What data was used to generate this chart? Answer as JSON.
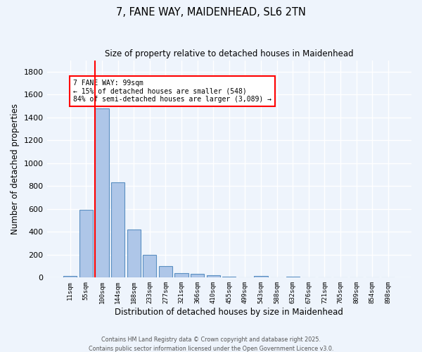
{
  "title_line1": "7, FANE WAY, MAIDENHEAD, SL6 2TN",
  "title_line2": "Size of property relative to detached houses in Maidenhead",
  "xlabel": "Distribution of detached houses by size in Maidenhead",
  "ylabel": "Number of detached properties",
  "bar_labels": [
    "11sqm",
    "55sqm",
    "100sqm",
    "144sqm",
    "188sqm",
    "233sqm",
    "277sqm",
    "321sqm",
    "366sqm",
    "410sqm",
    "455sqm",
    "499sqm",
    "543sqm",
    "588sqm",
    "632sqm",
    "676sqm",
    "721sqm",
    "765sqm",
    "809sqm",
    "854sqm",
    "898sqm"
  ],
  "bar_values": [
    15,
    590,
    1480,
    830,
    420,
    200,
    100,
    38,
    30,
    20,
    10,
    0,
    15,
    0,
    10,
    0,
    0,
    0,
    0,
    0,
    0
  ],
  "bar_color": "#aec6e8",
  "bar_edge_color": "#5a8fc2",
  "red_line_index": 2,
  "annotation_text": "7 FANE WAY: 99sqm\n← 15% of detached houses are smaller (548)\n84% of semi-detached houses are larger (3,089) →",
  "annotation_box_color": "white",
  "annotation_border_color": "red",
  "ylim": [
    0,
    1900
  ],
  "yticks": [
    0,
    200,
    400,
    600,
    800,
    1000,
    1200,
    1400,
    1600,
    1800
  ],
  "background_color": "#eef4fc",
  "grid_color": "white",
  "footer_line1": "Contains HM Land Registry data © Crown copyright and database right 2025.",
  "footer_line2": "Contains public sector information licensed under the Open Government Licence v3.0."
}
